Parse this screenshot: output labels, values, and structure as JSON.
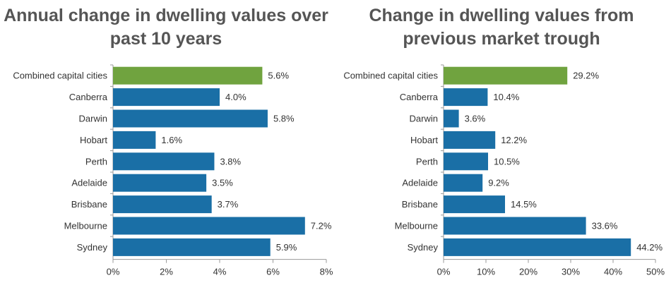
{
  "chart_data": [
    {
      "type": "bar",
      "orientation": "horizontal",
      "title": "Annual change in dwelling values over past 10 years",
      "categories": [
        "Combined capital cities",
        "Canberra",
        "Darwin",
        "Hobart",
        "Perth",
        "Adelaide",
        "Brisbane",
        "Melbourne",
        "Sydney"
      ],
      "values": [
        5.6,
        4.0,
        5.8,
        1.6,
        3.8,
        3.5,
        3.7,
        7.2,
        5.9
      ],
      "value_labels": [
        "5.6%",
        "4.0%",
        "5.8%",
        "1.6%",
        "3.8%",
        "3.5%",
        "3.7%",
        "7.2%",
        "5.9%"
      ],
      "xlim": [
        0,
        8
      ],
      "xticks": [
        "0%",
        "2%",
        "4%",
        "6%",
        "8%"
      ],
      "grid": false,
      "colors": {
        "highlight": "#70a33f",
        "default": "#1a6fa6"
      },
      "highlight_index": 0
    },
    {
      "type": "bar",
      "orientation": "horizontal",
      "title": "Change in dwelling values from previous market trough",
      "categories": [
        "Combined capital cities",
        "Canberra",
        "Darwin",
        "Hobart",
        "Perth",
        "Adelaide",
        "Brisbane",
        "Melbourne",
        "Sydney"
      ],
      "values": [
        29.2,
        10.4,
        3.6,
        12.2,
        10.5,
        9.2,
        14.5,
        33.6,
        44.2
      ],
      "value_labels": [
        "29.2%",
        "10.4%",
        "3.6%",
        "12.2%",
        "10.5%",
        "9.2%",
        "14.5%",
        "33.6%",
        "44.2%"
      ],
      "xlim": [
        0,
        50
      ],
      "xticks": [
        "0%",
        "10%",
        "20%",
        "30%",
        "40%",
        "50%"
      ],
      "grid": false,
      "colors": {
        "highlight": "#70a33f",
        "default": "#1a6fa6"
      },
      "highlight_index": 0
    }
  ]
}
